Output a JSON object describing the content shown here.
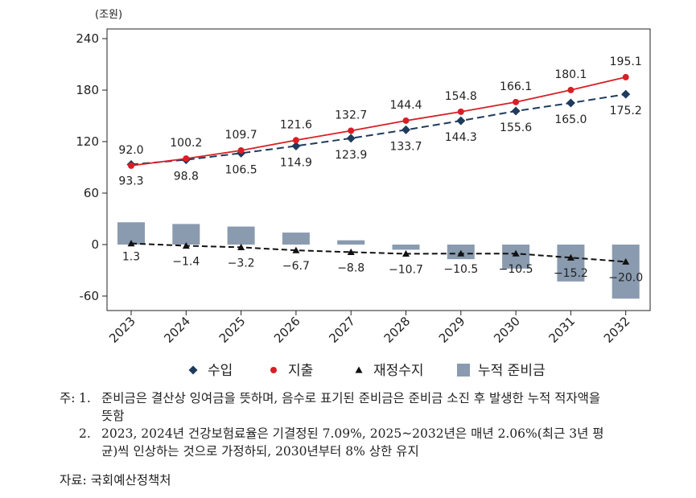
{
  "chart_data": {
    "type": "bar+line",
    "unit_label": "(조원)",
    "categories": [
      "2023",
      "2024",
      "2025",
      "2026",
      "2027",
      "2028",
      "2029",
      "2030",
      "2031",
      "2032"
    ],
    "ylim": [
      -60,
      240
    ],
    "yticks": [
      240,
      180,
      120,
      60,
      0,
      -60
    ],
    "ytick_labels": [
      "240",
      "180",
      "120",
      "60",
      "0",
      "-60"
    ],
    "grid": false,
    "legend_position": "bottom",
    "series": [
      {
        "name": "수입",
        "type": "line",
        "style": "dashed",
        "marker": "diamond",
        "color": "#1f3b5c",
        "values": [
          93.3,
          98.8,
          106.5,
          114.9,
          123.9,
          133.7,
          144.3,
          155.6,
          165.0,
          175.2
        ],
        "labels": [
          "93.3",
          "98.8",
          "106.5",
          "114.9",
          "123.9",
          "133.7",
          "144.3",
          "155.6",
          "165.0",
          "175.2"
        ]
      },
      {
        "name": "지출",
        "type": "line",
        "style": "solid",
        "marker": "circle",
        "color": "#d81f26",
        "values": [
          92.0,
          100.2,
          109.7,
          121.6,
          132.7,
          144.4,
          154.8,
          166.1,
          180.1,
          195.1
        ],
        "labels": [
          "92.0",
          "100.2",
          "109.7",
          "121.6",
          "132.7",
          "144.4",
          "154.8",
          "166.1",
          "180.1",
          "195.1"
        ]
      },
      {
        "name": "재정수지",
        "type": "line",
        "style": "dashed",
        "marker": "triangle",
        "color": "#111111",
        "values": [
          1.3,
          -1.4,
          -3.2,
          -6.7,
          -8.8,
          -10.7,
          -10.5,
          -10.5,
          -15.2,
          -20.0
        ],
        "labels": [
          "1.3",
          "−1.4",
          "−3.2",
          "−6.7",
          "−8.8",
          "−10.7",
          "−10.5",
          "−10.5",
          "−15.2",
          "−20.0"
        ]
      },
      {
        "name": "누적 준비금",
        "type": "bar",
        "color": "#8a9bb0",
        "values": [
          26,
          24,
          21,
          14,
          5,
          -6,
          -17,
          -28,
          -43,
          -63
        ]
      }
    ]
  },
  "notes": {
    "prefix": "주:",
    "items": [
      {
        "num": "1.",
        "line1": "준비금은 결산상 잉여금을 뜻하며, 음수로 표기된 준비금은 준비금 소진 후 발생한 누적 적자액을",
        "line2": "뜻함"
      },
      {
        "num": "2.",
        "line1": "2023, 2024년 건강보험료율은 기결정된 7.09%, 2025~2032년은 매년 2.06%(최근 3년 평",
        "line2": "균)씩 인상하는 것으로 가정하되, 2030년부터 8% 상한 유지"
      }
    ]
  },
  "source": "자료: 국회예산정책처"
}
